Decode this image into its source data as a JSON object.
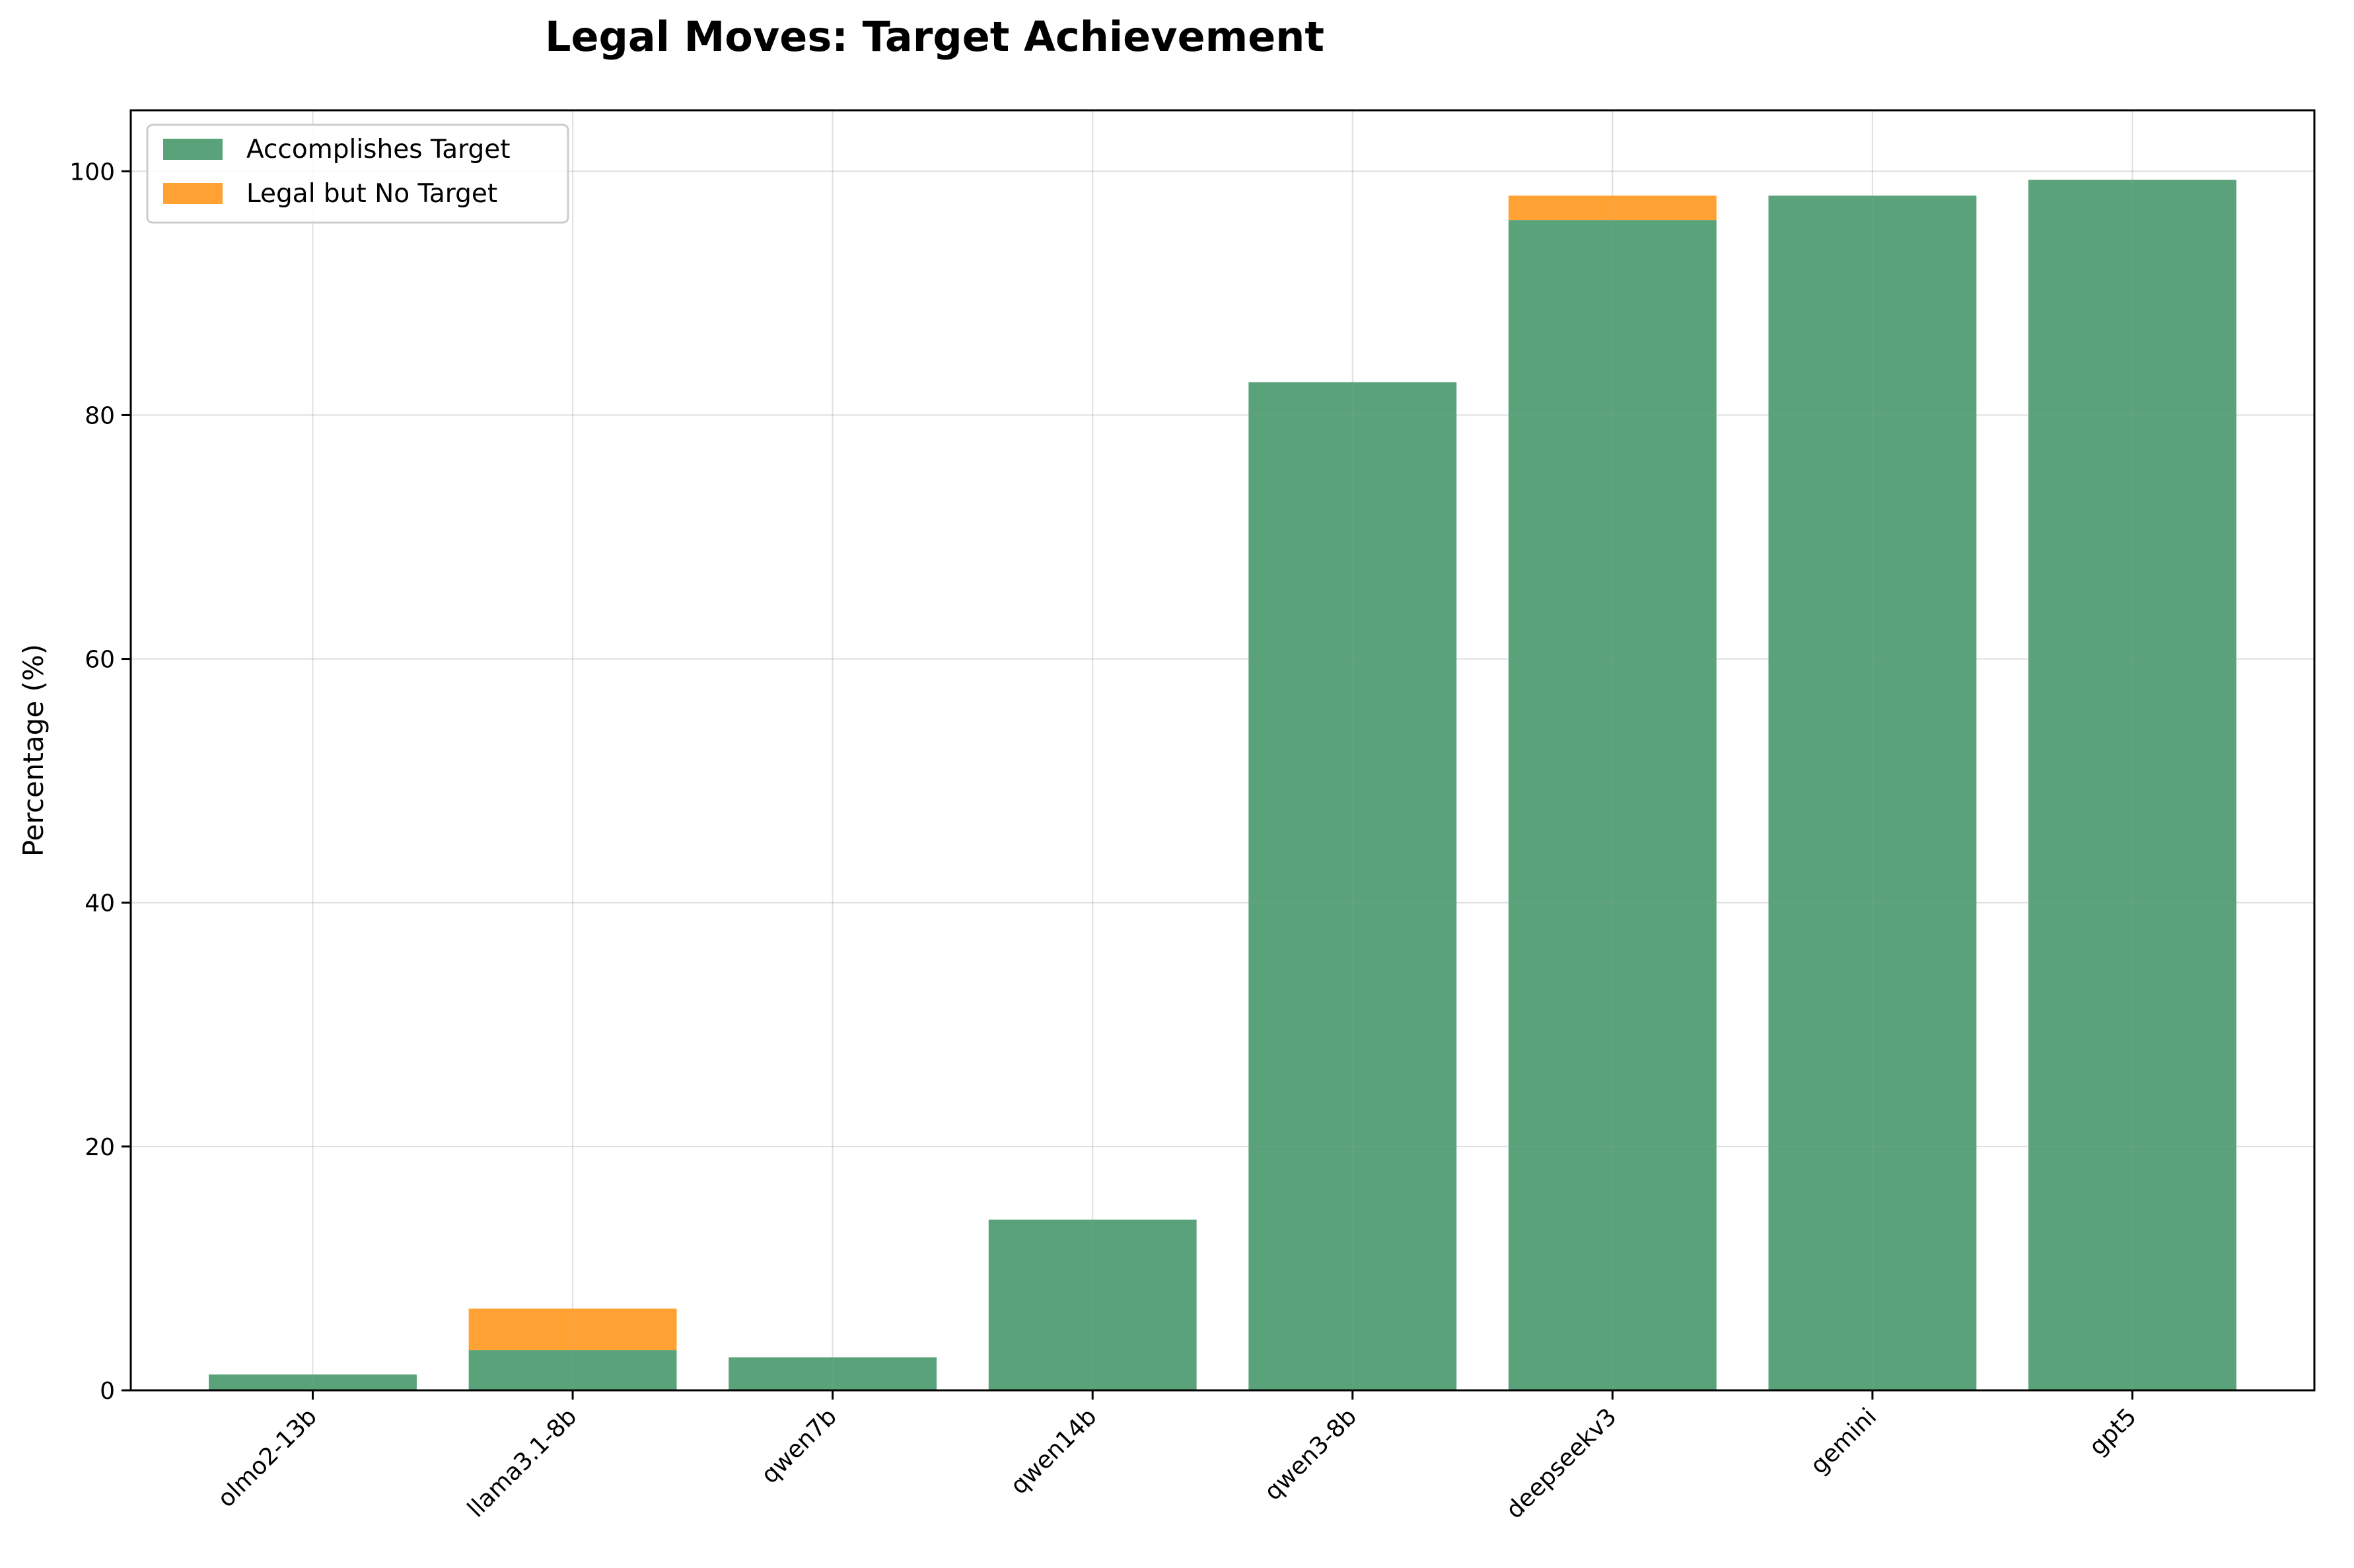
{
  "chart_data": {
    "type": "bar",
    "stacked": true,
    "title": "Legal Moves: Target Achievement",
    "xlabel": "",
    "ylabel": "Percentage (%)",
    "ylim": [
      0,
      105
    ],
    "yticks": [
      0,
      20,
      40,
      60,
      80,
      100
    ],
    "grid": true,
    "legend_position": "top-left",
    "categories": [
      "olmo2-13b",
      "llama3.1-8b",
      "qwen7b",
      "qwen14b",
      "qwen3-8b",
      "deepseekv3",
      "gemini",
      "gpt5"
    ],
    "series": [
      {
        "name": "Accomplishes Target",
        "color": "#59a27a",
        "values": [
          1.3,
          3.3,
          2.7,
          14.0,
          82.7,
          96.0,
          98.0,
          99.3
        ]
      },
      {
        "name": "Legal but No Target",
        "color": "#ffa233",
        "values": [
          0.0,
          3.4,
          0.0,
          0.0,
          0.0,
          2.0,
          0.0,
          0.0
        ]
      }
    ]
  }
}
